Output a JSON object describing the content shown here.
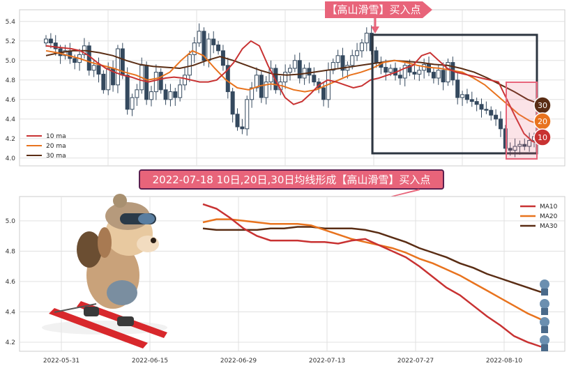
{
  "top_banner": "【高山滑雪】买入点",
  "mid_banner": "2022-07-18 10日,20日,30日均线形成【高山滑雪】买入点",
  "badges": [
    "30",
    "20",
    "10"
  ],
  "colors": {
    "ma10": "#c83232",
    "ma20": "#e8731e",
    "ma30": "#5a2d14",
    "candle": "#34495e",
    "banner": "#e8647a",
    "box": "#2c3540"
  },
  "chart_data": [
    {
      "type": "candlestick",
      "ylim": [
        3.92,
        5.52
      ],
      "y_ticks": [
        "4.0",
        "4.2",
        "4.4",
        "4.6",
        "4.8",
        "5.0",
        "5.2",
        "5.4"
      ],
      "legend": [
        "10 ma",
        "20 ma",
        "30 ma"
      ],
      "legend_position": "bottom-left",
      "grid": true,
      "closes": [
        5.22,
        5.18,
        5.12,
        5.05,
        5.1,
        5.02,
        4.98,
        5.06,
        5.15,
        4.9,
        4.95,
        4.86,
        4.7,
        4.92,
        4.75,
        5.12,
        4.85,
        4.5,
        4.62,
        4.7,
        4.95,
        4.6,
        4.68,
        4.88,
        4.7,
        4.6,
        4.68,
        4.62,
        4.75,
        4.85,
        5.06,
        5.18,
        5.3,
        5.0,
        5.22,
        5.16,
        5.1,
        4.95,
        4.68,
        4.45,
        4.32,
        4.3,
        4.6,
        4.72,
        4.85,
        4.62,
        4.78,
        4.92,
        4.7,
        4.78,
        4.88,
        4.92,
        5.0,
        4.82,
        4.92,
        4.85,
        4.78,
        4.72,
        4.6,
        4.9,
        4.98,
        5.05,
        4.9,
        4.95,
        5.05,
        5.1,
        5.18,
        5.28,
        5.1,
        4.98,
        4.93,
        4.88,
        4.92,
        4.85,
        4.82,
        4.95,
        4.88,
        4.86,
        4.9,
        4.96,
        4.88,
        4.82,
        4.9,
        4.78,
        4.98,
        4.8,
        4.62,
        4.65,
        4.6,
        4.58,
        4.55,
        4.5,
        4.49,
        4.44,
        4.4,
        4.3,
        4.1,
        4.08,
        4.12,
        4.14,
        4.12,
        4.18,
        4.22
      ],
      "ma10": [
        5.15,
        5.14,
        5.13,
        5.12,
        5.1,
        5.05,
        4.98,
        4.92,
        4.88,
        4.85,
        4.83,
        4.8,
        4.78,
        4.8,
        4.82,
        4.83,
        4.82,
        4.8,
        4.78,
        4.78,
        4.8,
        4.88,
        4.98,
        5.12,
        5.2,
        5.15,
        4.95,
        4.78,
        4.62,
        4.55,
        4.58,
        4.66,
        4.75,
        4.8,
        4.78,
        4.75,
        4.72,
        4.74,
        4.8,
        4.82,
        4.85,
        4.88,
        4.92,
        4.95,
        5.05,
        5.08,
        5.0,
        4.92,
        4.88,
        4.86,
        4.84,
        4.82,
        4.8,
        4.78,
        4.6,
        4.42,
        4.25,
        4.17,
        4.15
      ],
      "ma20": [
        5.1,
        5.08,
        5.05,
        5.02,
        4.98,
        4.95,
        4.92,
        4.88,
        4.85,
        4.8,
        4.82,
        4.88,
        5.0,
        5.1,
        5.05,
        4.92,
        4.8,
        4.72,
        4.7,
        4.74,
        4.76,
        4.74,
        4.7,
        4.68,
        4.7,
        4.75,
        4.8,
        4.85,
        4.88,
        4.92,
        4.98,
        5.0,
        4.98,
        4.95,
        4.93,
        4.92,
        4.9,
        4.88,
        4.82,
        4.75,
        4.65,
        4.55,
        4.45,
        4.38,
        4.34
      ],
      "ma30": [
        5.05,
        5.08,
        5.1,
        5.1,
        5.08,
        5.05,
        5.0,
        4.96,
        4.94,
        4.93,
        4.92,
        4.95,
        5.0,
        5.04,
        5.0,
        4.95,
        4.9,
        4.86,
        4.85,
        4.86,
        4.88,
        4.9,
        4.92,
        4.94,
        4.96,
        4.98,
        5.0,
        4.99,
        4.98,
        4.96,
        4.95,
        4.92,
        4.88,
        4.82,
        4.75,
        4.68,
        4.6,
        4.55
      ]
    },
    {
      "type": "line",
      "x_ticks": [
        "2022-05-31",
        "2022-06-15",
        "2022-06-29",
        "2022-07-13",
        "2022-07-27",
        "2022-08-10"
      ],
      "y_ticks": [
        "4.2",
        "4.4",
        "4.6",
        "4.8",
        "5.0"
      ],
      "ylim": [
        4.14,
        5.16
      ],
      "legend": [
        "MA10",
        "MA20",
        "MA30"
      ],
      "legend_position": "top-right",
      "grid": true,
      "series": [
        {
          "name": "MA10",
          "values": [
            5.11,
            5.08,
            5.02,
            4.95,
            4.9,
            4.87,
            4.87,
            4.87,
            4.86,
            4.86,
            4.85,
            4.87,
            4.88,
            4.84,
            4.8,
            4.76,
            4.7,
            4.63,
            4.56,
            4.51,
            4.44,
            4.37,
            4.31,
            4.24,
            4.2,
            4.17
          ]
        },
        {
          "name": "MA20",
          "values": [
            4.99,
            5.01,
            5.01,
            5.0,
            4.99,
            4.98,
            4.98,
            4.98,
            4.97,
            4.94,
            4.91,
            4.88,
            4.86,
            4.84,
            4.82,
            4.79,
            4.75,
            4.72,
            4.68,
            4.64,
            4.59,
            4.54,
            4.49,
            4.44,
            4.39,
            4.35
          ]
        },
        {
          "name": "MA30",
          "values": [
            4.95,
            4.94,
            4.94,
            4.94,
            4.94,
            4.95,
            4.95,
            4.96,
            4.96,
            4.95,
            4.95,
            4.95,
            4.94,
            4.92,
            4.89,
            4.86,
            4.82,
            4.79,
            4.76,
            4.72,
            4.69,
            4.65,
            4.62,
            4.59,
            4.56,
            4.53
          ]
        }
      ]
    }
  ]
}
